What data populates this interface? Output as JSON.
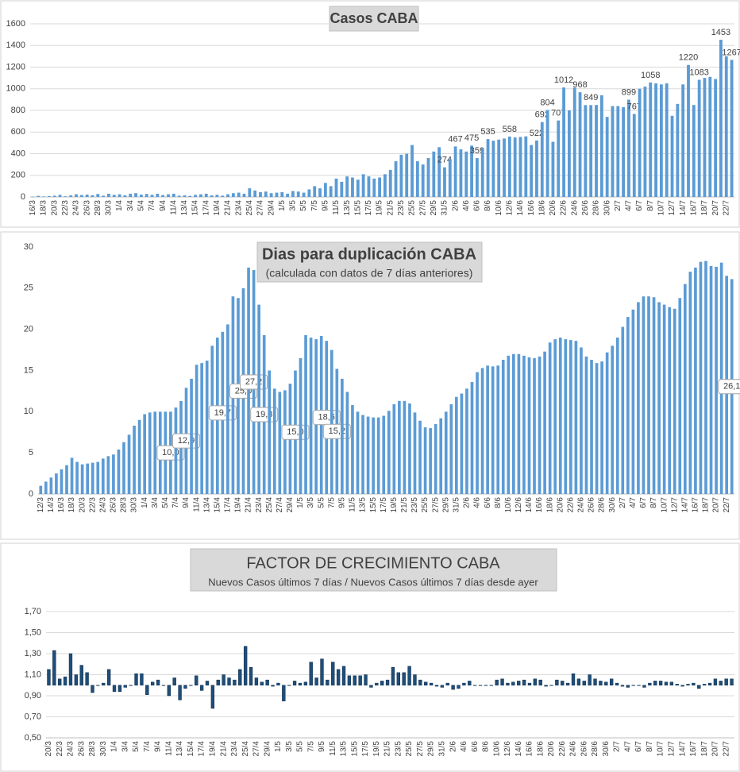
{
  "chart_data": [
    {
      "type": "bar",
      "title": "Casos CABA",
      "color": "#5b9bd5",
      "grid": true,
      "ylim": [
        0,
        1600
      ],
      "yticks": [
        0,
        200,
        400,
        600,
        800,
        1000,
        1200,
        1400,
        1600
      ],
      "categories": [
        "16/3",
        null,
        "18/3",
        null,
        "20/3",
        null,
        "22/3",
        null,
        "24/3",
        null,
        "26/3",
        null,
        "28/3",
        null,
        "30/3",
        null,
        "1/4",
        null,
        "3/4",
        null,
        "5/4",
        null,
        "7/4",
        null,
        "9/4",
        null,
        "11/4",
        null,
        "13/4",
        null,
        "15/4",
        null,
        "17/4",
        null,
        "19/4",
        null,
        "21/4",
        null,
        "23/4",
        null,
        "25/4",
        null,
        "27/4",
        null,
        "29/4",
        null,
        "1/5",
        null,
        "3/5",
        null,
        "5/5",
        null,
        "7/5",
        null,
        "9/5",
        null,
        "11/5",
        null,
        "13/5",
        null,
        "15/5",
        null,
        "17/5",
        null,
        "19/5",
        null,
        "21/5",
        null,
        "23/5",
        null,
        "25/5",
        null,
        "27/5",
        null,
        "29/5",
        null,
        "31/5",
        null,
        "2/6",
        null,
        "4/6",
        null,
        "6/6",
        null,
        "8/6",
        null,
        "10/6",
        null,
        "12/6",
        null,
        "14/6",
        null,
        "16/6",
        null,
        "18/6",
        null,
        "20/6",
        null,
        "22/6",
        null,
        "24/6",
        null,
        "26/6",
        null,
        "28/6",
        null,
        "30/6",
        null,
        "2/7",
        null,
        "4/7",
        null,
        "6/7",
        null,
        "8/7",
        null,
        "10/7",
        null,
        "12/7",
        null,
        "14/7",
        null,
        "16/7",
        null,
        "18/7",
        null,
        "20/7",
        null,
        "22/7",
        null
      ],
      "values": [
        3,
        10,
        5,
        8,
        12,
        20,
        6,
        15,
        25,
        18,
        22,
        16,
        28,
        12,
        30,
        20,
        25,
        15,
        30,
        35,
        22,
        28,
        20,
        30,
        18,
        25,
        30,
        12,
        15,
        10,
        20,
        25,
        30,
        15,
        20,
        12,
        25,
        35,
        40,
        30,
        80,
        60,
        45,
        50,
        35,
        40,
        45,
        30,
        55,
        50,
        40,
        70,
        100,
        80,
        130,
        100,
        170,
        140,
        190,
        180,
        160,
        210,
        190,
        170,
        180,
        210,
        250,
        330,
        390,
        400,
        480,
        330,
        300,
        360,
        420,
        460,
        274,
        350,
        467,
        440,
        420,
        475,
        359,
        450,
        535,
        520,
        530,
        540,
        558,
        550,
        555,
        560,
        480,
        522,
        692,
        804,
        510,
        707,
        1012,
        800,
        1010,
        968,
        849,
        849,
        850,
        940,
        740,
        840,
        840,
        830,
        899,
        767,
        1000,
        1020,
        1058,
        1050,
        1040,
        1050,
        750,
        860,
        1040,
        1220,
        850,
        1083,
        1100,
        1110,
        1090,
        1453,
        1300,
        1267
      ],
      "value_labels": [
        null,
        null,
        null,
        null,
        null,
        null,
        null,
        null,
        null,
        null,
        null,
        null,
        null,
        null,
        null,
        null,
        null,
        null,
        null,
        null,
        null,
        null,
        null,
        null,
        null,
        null,
        null,
        null,
        null,
        null,
        null,
        null,
        null,
        null,
        null,
        null,
        null,
        null,
        null,
        null,
        null,
        null,
        null,
        null,
        null,
        null,
        null,
        null,
        null,
        null,
        null,
        null,
        null,
        null,
        null,
        null,
        null,
        null,
        null,
        null,
        null,
        null,
        null,
        null,
        null,
        null,
        null,
        null,
        null,
        null,
        null,
        null,
        null,
        null,
        null,
        null,
        "274",
        null,
        "467",
        null,
        null,
        "475",
        "359",
        null,
        "535",
        null,
        null,
        null,
        "558",
        null,
        null,
        null,
        null,
        "522",
        "692",
        "804",
        null,
        "707",
        "1012",
        null,
        null,
        "968",
        null,
        "849",
        null,
        null,
        null,
        null,
        null,
        null,
        "899",
        "767",
        null,
        null,
        "1058",
        null,
        null,
        null,
        null,
        null,
        null,
        "1220",
        null,
        "1083",
        null,
        null,
        null,
        "1453",
        null,
        "1267"
      ]
    },
    {
      "type": "bar",
      "title": "Dias para duplicación CABA",
      "subtitle": "(calculada con datos de 7 días anteriores)",
      "color": "#5b9bd5",
      "grid": false,
      "ylim": [
        0,
        30
      ],
      "yticks": [
        0,
        5,
        10,
        15,
        20,
        25,
        30
      ],
      "categories": [
        "12/3",
        null,
        "14/3",
        null,
        "16/3",
        null,
        "18/3",
        null,
        "20/3",
        null,
        "22/3",
        null,
        "24/3",
        null,
        "26/3",
        null,
        "28/3",
        null,
        "30/3",
        null,
        "1/4",
        null,
        "3/4",
        null,
        "5/4",
        null,
        "7/4",
        null,
        "9/4",
        null,
        "11/4",
        null,
        "13/4",
        null,
        "15/4",
        null,
        "17/4",
        null,
        "19/4",
        null,
        "21/4",
        null,
        "23/4",
        null,
        "25/4",
        null,
        "27/4",
        null,
        "29/4",
        null,
        "1/5",
        null,
        "3/5",
        null,
        "5/5",
        null,
        "7/5",
        null,
        "9/5",
        null,
        "11/5",
        null,
        "13/5",
        null,
        "15/5",
        null,
        "17/5",
        null,
        "19/5",
        null,
        "21/5",
        null,
        "23/5",
        null,
        "25/5",
        null,
        "27/5",
        null,
        "29/5",
        null,
        "31/5",
        null,
        "2/6",
        null,
        "4/6",
        null,
        "6/6",
        null,
        "8/6",
        null,
        "10/6",
        null,
        "12/6",
        null,
        "14/6",
        null,
        "16/6",
        null,
        "18/6",
        null,
        "20/6",
        null,
        "22/6",
        null,
        "24/6",
        null,
        "26/6",
        null,
        "28/6",
        null,
        "30/6",
        null,
        "2/7",
        null,
        "4/7",
        null,
        "6/7",
        null,
        "8/7",
        null,
        "10/7",
        null,
        "12/7",
        null,
        "14/7",
        null,
        "16/7",
        null,
        "18/7",
        null,
        "20/7",
        null,
        "22/7",
        null
      ],
      "values": [
        1.0,
        1.5,
        2.0,
        2.5,
        3.0,
        3.5,
        4.4,
        3.9,
        3.6,
        3.7,
        3.8,
        3.9,
        4.3,
        4.6,
        4.8,
        5.4,
        6.3,
        7.2,
        8.3,
        9.0,
        9.7,
        9.9,
        10.0,
        10.0,
        10.0,
        10.0,
        10.5,
        11.3,
        12.9,
        14.0,
        15.7,
        15.9,
        16.2,
        18.0,
        19.0,
        19.7,
        20.6,
        24.0,
        23.8,
        25.0,
        27.5,
        27.2,
        23.0,
        19.3,
        15.0,
        12.8,
        12.4,
        12.6,
        13.4,
        15.0,
        16.5,
        19.3,
        19.0,
        18.8,
        19.2,
        18.6,
        17.5,
        15.2,
        14.0,
        12.4,
        10.8,
        10.0,
        9.6,
        9.4,
        9.3,
        9.3,
        9.5,
        10.1,
        10.9,
        11.3,
        11.3,
        11.0,
        9.9,
        8.9,
        8.1,
        8.0,
        8.5,
        9.2,
        10.0,
        10.9,
        11.8,
        12.2,
        12.8,
        13.6,
        14.8,
        15.3,
        15.6,
        15.5,
        15.6,
        16.3,
        16.8,
        17.0,
        17.0,
        16.8,
        16.6,
        16.5,
        16.7,
        17.3,
        18.4,
        18.8,
        19.0,
        18.8,
        18.7,
        18.6,
        17.8,
        16.7,
        16.3,
        15.9,
        16.1,
        17.2,
        18.0,
        19.0,
        20.3,
        21.5,
        22.4,
        23.3,
        24.0,
        24.0,
        23.9,
        23.3,
        23.0,
        22.7,
        22.5,
        23.8,
        25.5,
        27.0,
        27.5,
        28.2,
        28.3,
        27.7,
        27.6,
        28.1,
        26.5,
        26.1
      ],
      "value_labels": [
        null,
        null,
        null,
        null,
        null,
        null,
        null,
        null,
        null,
        null,
        null,
        null,
        null,
        null,
        null,
        null,
        null,
        null,
        null,
        null,
        null,
        null,
        null,
        null,
        null,
        "10,0",
        null,
        null,
        "12,9",
        null,
        null,
        null,
        null,
        null,
        null,
        "19,7",
        null,
        null,
        null,
        "25,0",
        null,
        "27,2",
        null,
        "19,3",
        null,
        null,
        null,
        null,
        null,
        "15,0",
        null,
        null,
        null,
        null,
        null,
        "18,6",
        null,
        "15,2",
        null,
        null,
        null,
        null,
        null,
        null,
        null,
        null,
        null,
        null,
        null,
        null,
        null,
        null,
        null,
        null,
        null,
        null,
        null,
        null,
        null,
        null,
        null,
        null,
        null,
        null,
        null,
        null,
        null,
        null,
        null,
        null,
        null,
        null,
        null,
        null,
        null,
        null,
        null,
        null,
        null,
        null,
        null,
        null,
        null,
        null,
        null,
        null,
        null,
        null,
        null,
        null,
        null,
        null,
        null,
        null,
        null,
        null,
        null,
        null,
        null,
        null,
        null,
        null,
        null,
        null,
        null,
        null,
        null,
        null,
        null,
        null,
        null,
        null,
        null,
        "26,1"
      ]
    },
    {
      "type": "bar",
      "title": "FACTOR DE CRECIMIENTO CABA",
      "subtitle": "Nuevos Casos últimos 7 días / Nuevos Casos últimos 7 días desde ayer",
      "color": "#1f4e79",
      "grid": true,
      "baseline": 1,
      "ylim": [
        0.5,
        1.7
      ],
      "yticks": [
        {
          "value": 0.5,
          "label": "0,50"
        },
        {
          "value": 0.7,
          "label": "0,70"
        },
        {
          "value": 0.9,
          "label": "0,90"
        },
        {
          "value": 1.1,
          "label": "1,10"
        },
        {
          "value": 1.3,
          "label": "1,30"
        },
        {
          "value": 1.5,
          "label": "1,50"
        },
        {
          "value": 1.7,
          "label": "1,70"
        }
      ],
      "categories": [
        "20/3",
        null,
        "22/3",
        null,
        "24/3",
        null,
        "26/3",
        null,
        "28/3",
        null,
        "30/3",
        null,
        "1/4",
        null,
        "3/4",
        null,
        "5/4",
        null,
        "7/4",
        null,
        "9/4",
        null,
        "11/4",
        null,
        "13/4",
        null,
        "15/4",
        null,
        "17/4",
        null,
        "19/4",
        null,
        "21/4",
        null,
        "23/4",
        null,
        "25/4",
        null,
        "27/4",
        null,
        "29/4",
        null,
        "1/5",
        null,
        "3/5",
        null,
        "5/5",
        null,
        "7/5",
        null,
        "9/5",
        null,
        "11/5",
        null,
        "13/5",
        null,
        "15/5",
        null,
        "17/5",
        null,
        "19/5",
        null,
        "21/5",
        null,
        "23/5",
        null,
        "25/5",
        null,
        "27/5",
        null,
        "29/5",
        null,
        "31/5",
        null,
        "2/6",
        null,
        "4/6",
        null,
        "6/6",
        null,
        "8/6",
        null,
        "10/6",
        null,
        "12/6",
        null,
        "14/6",
        null,
        "16/6",
        null,
        "18/6",
        null,
        "20/6",
        null,
        "22/6",
        null,
        "24/6",
        null,
        "26/6",
        null,
        "28/6",
        null,
        "30/6",
        null,
        "2/7",
        null,
        "4/7",
        null,
        "6/7",
        null,
        "8/7",
        null,
        "10/7",
        null,
        "12/7",
        null,
        "14/7",
        null,
        "16/7",
        null,
        "18/7",
        null,
        "20/7",
        null,
        "22/7",
        null
      ],
      "values": [
        1.15,
        1.33,
        1.06,
        1.08,
        1.3,
        1.1,
        1.19,
        1.12,
        0.93,
        1.0,
        1.02,
        1.15,
        0.94,
        0.94,
        0.98,
        1.0,
        1.11,
        1.11,
        0.91,
        1.03,
        1.05,
        1.0,
        0.9,
        1.07,
        0.86,
        0.97,
        1.0,
        1.09,
        0.95,
        1.04,
        0.78,
        1.05,
        1.1,
        1.07,
        1.05,
        1.15,
        1.37,
        1.17,
        1.07,
        1.03,
        1.05,
        0.99,
        1.02,
        0.85,
        1.0,
        1.04,
        1.02,
        1.03,
        1.22,
        1.07,
        1.25,
        1.05,
        1.22,
        1.15,
        1.18,
        1.09,
        1.09,
        1.09,
        1.1,
        0.98,
        1.02,
        1.04,
        1.05,
        1.17,
        1.12,
        1.12,
        1.18,
        1.1,
        1.05,
        1.03,
        1.02,
        0.99,
        0.98,
        1.02,
        0.96,
        0.97,
        1.02,
        1.04,
        1.0,
        1.0,
        1.0,
        1.0,
        1.05,
        1.06,
        1.02,
        1.03,
        1.04,
        1.05,
        1.02,
        1.06,
        1.05,
        0.99,
        1.0,
        1.05,
        1.04,
        1.02,
        1.11,
        1.06,
        1.04,
        1.1,
        1.06,
        1.04,
        1.03,
        1.06,
        1.02,
        0.99,
        0.98,
        1.0,
        1.0,
        0.98,
        1.02,
        1.04,
        1.04,
        1.03,
        1.03,
        1.01,
        0.99,
        1.01,
        1.02,
        0.97,
        1.01,
        1.02,
        1.06,
        1.04,
        1.06,
        1.06
      ]
    }
  ]
}
